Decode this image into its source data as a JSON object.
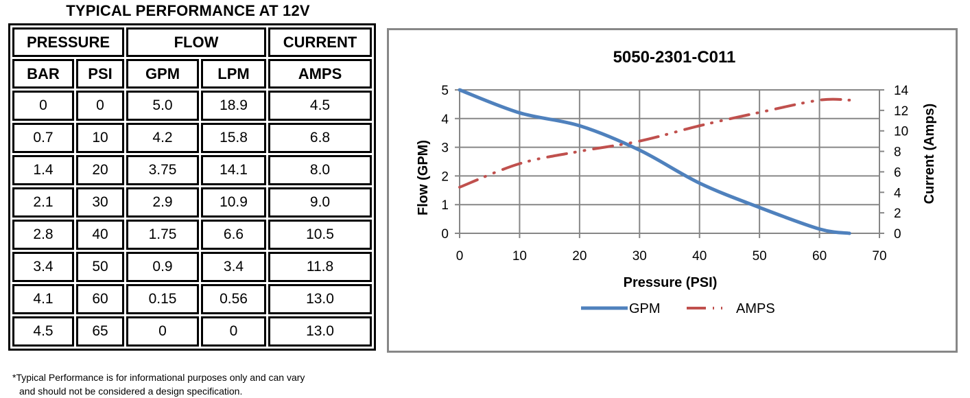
{
  "table": {
    "title": "TYPICAL PERFORMANCE AT 12V",
    "group_headers": [
      "PRESSURE",
      "FLOW",
      "CURRENT"
    ],
    "column_headers": [
      "BAR",
      "PSI",
      "GPM",
      "LPM",
      "AMPS"
    ],
    "rows": [
      [
        "0",
        "0",
        "5.0",
        "18.9",
        "4.5"
      ],
      [
        "0.7",
        "10",
        "4.2",
        "15.8",
        "6.8"
      ],
      [
        "1.4",
        "20",
        "3.75",
        "14.1",
        "8.0"
      ],
      [
        "2.1",
        "30",
        "2.9",
        "10.9",
        "9.0"
      ],
      [
        "2.8",
        "40",
        "1.75",
        "6.6",
        "10.5"
      ],
      [
        "3.4",
        "50",
        "0.9",
        "3.4",
        "11.8"
      ],
      [
        "4.1",
        "60",
        "0.15",
        "0.56",
        "13.0"
      ],
      [
        "4.5",
        "65",
        "0",
        "0",
        "13.0"
      ]
    ]
  },
  "footnote": {
    "line1": "*Typical Performance is for informational purposes only and can vary",
    "line2": "and should not be considered a design specification."
  },
  "colors": {
    "gpm": "#4f81bd",
    "amps": "#c0504d",
    "grid": "#868686",
    "frame": "#878787"
  },
  "chart_data": {
    "type": "line",
    "title": "5050-2301-C011",
    "xlabel": "Pressure (PSI)",
    "ylabel": "Flow (GPM)",
    "y2label": "Current (Amps)",
    "x": [
      0,
      10,
      20,
      30,
      40,
      50,
      60,
      65
    ],
    "series": [
      {
        "name": "GPM",
        "axis": "left",
        "style": "solid",
        "values": [
          5.0,
          4.2,
          3.75,
          2.9,
          1.75,
          0.9,
          0.15,
          0
        ]
      },
      {
        "name": "AMPS",
        "axis": "right",
        "style": "dash-dot-dot",
        "values": [
          4.5,
          6.8,
          8.0,
          9.0,
          10.5,
          11.8,
          13.0,
          13.0
        ]
      }
    ],
    "xlim": [
      0,
      70
    ],
    "ylim": [
      0,
      5
    ],
    "y2lim": [
      0,
      14
    ],
    "xticks": [
      "0",
      "10",
      "20",
      "30",
      "40",
      "50",
      "60",
      "70"
    ],
    "yticks": [
      "0",
      "1",
      "2",
      "3",
      "4",
      "5"
    ],
    "y2ticks": [
      "0",
      "2",
      "4",
      "6",
      "8",
      "10",
      "12",
      "14"
    ],
    "grid": true,
    "legend": "bottom"
  }
}
